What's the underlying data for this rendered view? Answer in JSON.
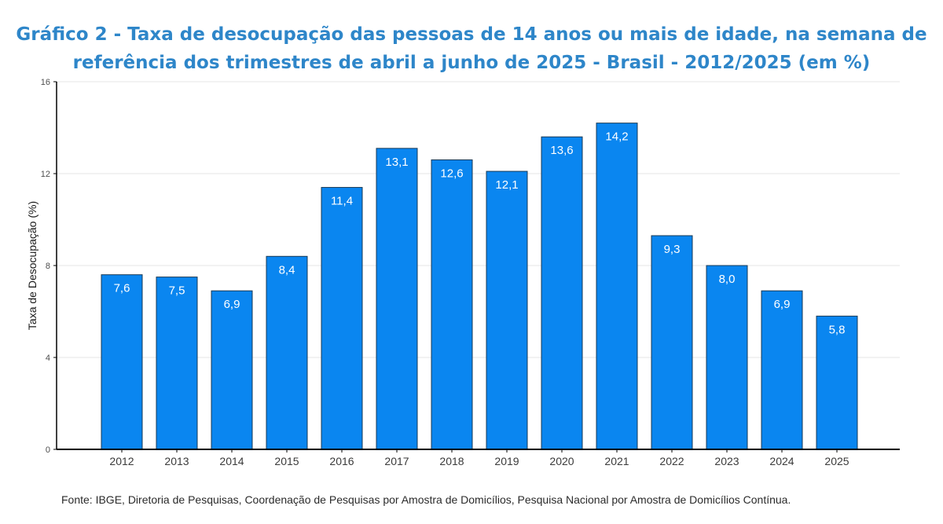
{
  "title": {
    "line1": "Gráfico 2 - Taxa de desocupação das pessoas de 14 anos ou mais de idade, na semana de",
    "line2": "referência dos trimestres de abril a junho de 2025 - Brasil - 2012/2025 (em %)"
  },
  "source": "Fonte: IBGE, Diretoria de Pesquisas, Coordenação de Pesquisas por Amostra de Domicílios, Pesquisa Nacional por Amostra de Domicílios Contínua.",
  "colors": {
    "title": "#2e86c9",
    "bar_fill": "#0a86f0",
    "bar_stroke": "#1a3a55",
    "grid": "#e6e6e6",
    "axis": "#000000",
    "tick_text": "#4d4d4d",
    "label_text": "#ffffff"
  },
  "chart_data": {
    "type": "bar",
    "title": "Gráfico 2 - Taxa de desocupação das pessoas de 14 anos ou mais de idade, na semana de referência dos trimestres de abril a junho de 2025 - Brasil - 2012/2025 (em %)",
    "xlabel": "",
    "ylabel": "Taxa de Desocupação (%)",
    "categories": [
      "2012",
      "2013",
      "2014",
      "2015",
      "2016",
      "2017",
      "2018",
      "2019",
      "2020",
      "2021",
      "2022",
      "2023",
      "2024",
      "2025"
    ],
    "values": [
      7.6,
      7.5,
      6.9,
      8.4,
      11.4,
      13.1,
      12.6,
      12.1,
      13.6,
      14.2,
      9.3,
      8.0,
      6.9,
      5.8
    ],
    "value_labels": [
      "7,6",
      "7,5",
      "6,9",
      "8,4",
      "11,4",
      "13,1",
      "12,6",
      "12,1",
      "13,6",
      "14,2",
      "9,3",
      "8,0",
      "6,9",
      "5,8"
    ],
    "yticks": [
      0,
      4,
      8,
      12,
      16
    ],
    "ylim": [
      0,
      16
    ],
    "grid": true,
    "legend": "none"
  }
}
